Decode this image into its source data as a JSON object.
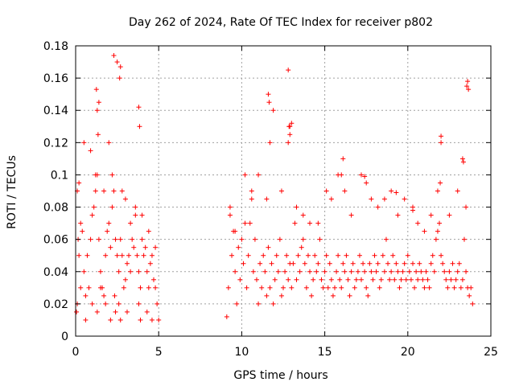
{
  "chart_data": {
    "type": "scatter",
    "title": "Day 262 of 2024, Rate Of TEC Index for receiver p802",
    "xlabel": "GPS time / hours",
    "ylabel": "ROTI / TECUs",
    "xlim": [
      0,
      25
    ],
    "ylim": [
      0,
      0.18
    ],
    "x_ticks": [
      0,
      5,
      10,
      15,
      20,
      25
    ],
    "x_tick_labels": [
      "0",
      "5",
      "10",
      "15",
      "20",
      "25"
    ],
    "y_ticks": [
      0,
      0.02,
      0.04,
      0.06,
      0.08,
      0.1,
      0.12,
      0.14,
      0.16,
      0.18
    ],
    "y_tick_labels": [
      "0",
      "0.02",
      "0.04",
      "0.06",
      "0.08",
      "0.1",
      "0.12",
      "0.14",
      "0.16",
      "0.18"
    ],
    "grid": true,
    "marker": "+",
    "marker_color": "#ff0000",
    "series": [
      {
        "name": "ROTI",
        "x": [
          0.05,
          0.1,
          0.15,
          0.2,
          0.3,
          0.4,
          0.5,
          0.6,
          0.7,
          0.8,
          0.9,
          1.0,
          1.1,
          1.2,
          1.3,
          1.4,
          1.5,
          1.6,
          1.7,
          1.8,
          1.9,
          2.0,
          2.1,
          2.2,
          2.3,
          2.4,
          2.5,
          2.6,
          2.7,
          2.8,
          2.9,
          3.0,
          3.1,
          3.2,
          3.3,
          3.4,
          3.5,
          3.6,
          3.7,
          3.8,
          3.9,
          4.0,
          4.1,
          4.2,
          4.3,
          4.4,
          4.5,
          4.6,
          4.7,
          4.8,
          4.9,
          5.0,
          0.1,
          0.3,
          0.6,
          1.0,
          1.3,
          1.5,
          1.8,
          2.1,
          2.35,
          2.4,
          2.6,
          2.7,
          3.1,
          3.8,
          3.9,
          4.3,
          4.6,
          0.2,
          0.5,
          0.9,
          1.2,
          1.4,
          1.7,
          2.0,
          2.2,
          2.5,
          2.8,
          3.0,
          3.3,
          3.6,
          4.0,
          4.4,
          4.8,
          1.25,
          1.3,
          1.35,
          2.3,
          2.65,
          2.7,
          3.8,
          3.85,
          9.1,
          9.2,
          9.3,
          9.4,
          9.5,
          9.6,
          9.7,
          9.8,
          9.9,
          10.0,
          10.1,
          10.2,
          10.3,
          10.4,
          10.5,
          10.6,
          10.7,
          10.8,
          10.9,
          11.0,
          11.1,
          11.2,
          11.3,
          11.4,
          11.5,
          11.6,
          11.7,
          11.8,
          11.9,
          12.0,
          12.1,
          12.2,
          12.3,
          12.4,
          12.5,
          12.6,
          12.7,
          12.8,
          12.9,
          13.0,
          13.1,
          13.2,
          13.3,
          13.4,
          13.5,
          13.6,
          13.7,
          13.8,
          13.9,
          14.0,
          14.1,
          14.2,
          14.3,
          14.4,
          14.5,
          14.6,
          14.7,
          14.8,
          14.9,
          15.0,
          15.1,
          15.2,
          15.3,
          15.4,
          15.5,
          15.6,
          15.7,
          15.8,
          15.9,
          16.0,
          16.1,
          16.2,
          16.3,
          16.4,
          16.5,
          16.6,
          16.7,
          16.8,
          16.9,
          17.0,
          17.1,
          17.2,
          17.3,
          17.4,
          17.5,
          17.6,
          17.7,
          17.8,
          17.9,
          18.0,
          18.1,
          18.2,
          18.3,
          18.4,
          18.5,
          18.6,
          18.7,
          18.8,
          18.9,
          19.0,
          19.1,
          19.2,
          19.3,
          19.4,
          19.5,
          19.6,
          19.7,
          19.8,
          19.9,
          20.0,
          20.1,
          20.2,
          20.3,
          20.4,
          20.5,
          20.6,
          20.7,
          20.8,
          20.9,
          21.0,
          21.1,
          21.2,
          21.3,
          21.4,
          21.5,
          21.6,
          21.7,
          21.8,
          21.9,
          22.0,
          22.1,
          22.2,
          22.3,
          22.4,
          22.5,
          22.6,
          22.7,
          22.8,
          22.9,
          23.0,
          23.1,
          23.2,
          23.3,
          23.4,
          23.5,
          23.6,
          23.7,
          23.8,
          23.9,
          9.3,
          9.6,
          10.2,
          10.6,
          11.0,
          11.5,
          11.7,
          11.9,
          12.4,
          12.8,
          12.85,
          12.9,
          13.3,
          13.7,
          14.1,
          14.6,
          15.1,
          15.4,
          15.8,
          16.1,
          16.2,
          16.6,
          17.2,
          17.5,
          17.8,
          18.2,
          18.6,
          19.0,
          19.4,
          19.8,
          20.3,
          20.6,
          21.0,
          21.4,
          21.8,
          21.95,
          22.0,
          22.5,
          23.0,
          23.3,
          23.5,
          23.55,
          11.6,
          11.65,
          12.8,
          12.9,
          13.0,
          16.0,
          17.4,
          19.3,
          20.3,
          22.0,
          23.35,
          23.6,
          23.65
        ],
        "y": [
          0.015,
          0.09,
          0.06,
          0.05,
          0.07,
          0.065,
          0.04,
          0.025,
          0.05,
          0.03,
          0.06,
          0.075,
          0.08,
          0.09,
          0.1,
          0.06,
          0.04,
          0.03,
          0.025,
          0.05,
          0.065,
          0.07,
          0.055,
          0.08,
          0.09,
          0.06,
          0.05,
          0.04,
          0.06,
          0.05,
          0.03,
          0.035,
          0.045,
          0.05,
          0.04,
          0.06,
          0.055,
          0.075,
          0.05,
          0.04,
          0.03,
          0.06,
          0.05,
          0.055,
          0.04,
          0.03,
          0.045,
          0.05,
          0.035,
          0.03,
          0.02,
          0.01,
          0.02,
          0.03,
          0.01,
          0.02,
          0.015,
          0.03,
          0.02,
          0.01,
          0.025,
          0.015,
          0.02,
          0.01,
          0.015,
          0.02,
          0.01,
          0.015,
          0.01,
          0.095,
          0.12,
          0.115,
          0.1,
          0.145,
          0.09,
          0.12,
          0.1,
          0.17,
          0.09,
          0.085,
          0.07,
          0.08,
          0.075,
          0.065,
          0.055,
          0.153,
          0.14,
          0.125,
          0.174,
          0.16,
          0.167,
          0.142,
          0.13,
          0.012,
          0.03,
          0.075,
          0.05,
          0.065,
          0.04,
          0.02,
          0.055,
          0.035,
          0.06,
          0.045,
          0.1,
          0.03,
          0.05,
          0.07,
          0.085,
          0.04,
          0.06,
          0.035,
          0.02,
          0.045,
          0.03,
          0.05,
          0.04,
          0.025,
          0.055,
          0.03,
          0.045,
          0.02,
          0.035,
          0.05,
          0.04,
          0.06,
          0.025,
          0.03,
          0.04,
          0.05,
          0.035,
          0.045,
          0.03,
          0.045,
          0.07,
          0.035,
          0.05,
          0.04,
          0.055,
          0.06,
          0.045,
          0.03,
          0.05,
          0.04,
          0.025,
          0.035,
          0.05,
          0.04,
          0.045,
          0.06,
          0.035,
          0.03,
          0.04,
          0.05,
          0.03,
          0.045,
          0.035,
          0.025,
          0.03,
          0.04,
          0.05,
          0.035,
          0.03,
          0.045,
          0.04,
          0.05,
          0.035,
          0.025,
          0.04,
          0.045,
          0.03,
          0.035,
          0.04,
          0.05,
          0.035,
          0.045,
          0.04,
          0.03,
          0.025,
          0.045,
          0.04,
          0.035,
          0.05,
          0.04,
          0.045,
          0.03,
          0.035,
          0.05,
          0.04,
          0.06,
          0.045,
          0.035,
          0.04,
          0.05,
          0.035,
          0.045,
          0.04,
          0.03,
          0.035,
          0.04,
          0.045,
          0.035,
          0.05,
          0.04,
          0.035,
          0.045,
          0.03,
          0.04,
          0.035,
          0.045,
          0.04,
          0.035,
          0.03,
          0.04,
          0.035,
          0.03,
          0.045,
          0.05,
          0.04,
          0.06,
          0.065,
          0.07,
          0.05,
          0.045,
          0.04,
          0.035,
          0.03,
          0.04,
          0.035,
          0.045,
          0.03,
          0.035,
          0.04,
          0.045,
          0.03,
          0.035,
          0.06,
          0.04,
          0.03,
          0.025,
          0.03,
          0.02,
          0.08,
          0.065,
          0.07,
          0.09,
          0.1,
          0.085,
          0.12,
          0.14,
          0.09,
          0.12,
          0.13,
          0.125,
          0.08,
          0.075,
          0.07,
          0.07,
          0.09,
          0.085,
          0.1,
          0.11,
          0.09,
          0.075,
          0.1,
          0.095,
          0.085,
          0.08,
          0.085,
          0.09,
          0.075,
          0.085,
          0.08,
          0.07,
          0.065,
          0.075,
          0.09,
          0.095,
          0.12,
          0.075,
          0.09,
          0.11,
          0.08,
          0.155,
          0.15,
          0.145,
          0.165,
          0.13,
          0.132,
          0.1,
          0.099,
          0.089,
          0.078,
          0.124,
          0.108,
          0.158,
          0.153
        ]
      }
    ]
  }
}
